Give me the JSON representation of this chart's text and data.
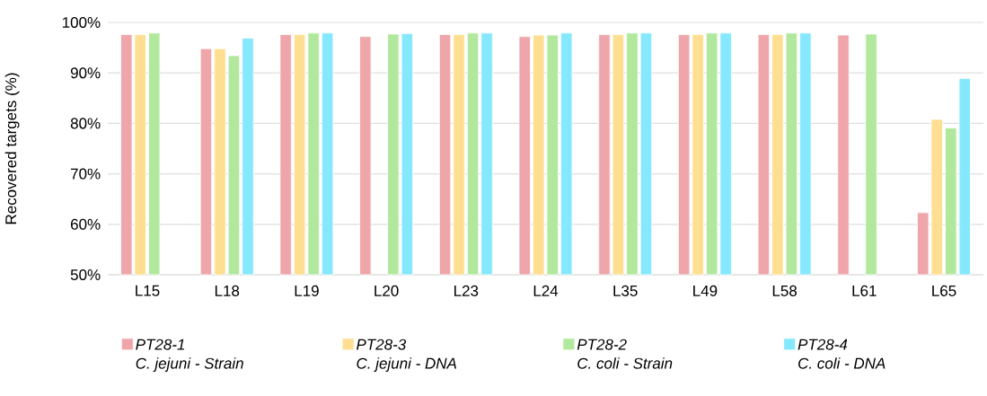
{
  "chart_data": {
    "type": "bar",
    "ylabel": "Recovered targets (%)",
    "categories": [
      "L15",
      "L18",
      "L19",
      "L20",
      "L23",
      "L24",
      "L35",
      "L49",
      "L58",
      "L61",
      "L65"
    ],
    "series": [
      {
        "name": "PT28-1 C. jejuni - Strain",
        "color": "#eea6aa",
        "values": [
          97.6,
          94.8,
          97.6,
          97.2,
          97.6,
          97.2,
          97.6,
          97.6,
          97.6,
          97.5,
          62.3
        ]
      },
      {
        "name": "PT28-3 C. jejuni - DNA",
        "color": "#fede91",
        "values": [
          97.6,
          94.8,
          97.6,
          null,
          97.6,
          97.5,
          97.6,
          97.6,
          97.6,
          null,
          80.8
        ]
      },
      {
        "name": "PT28-2 C. coli - Strain",
        "color": "#b1e89e",
        "values": [
          97.9,
          93.4,
          97.9,
          97.7,
          97.9,
          97.5,
          97.9,
          97.9,
          97.9,
          97.7,
          79.1
        ]
      },
      {
        "name": "PT28-4 C. coli - DNA",
        "color": "#86e8fc",
        "values": [
          null,
          96.9,
          97.9,
          97.8,
          97.9,
          97.9,
          97.9,
          97.9,
          97.9,
          null,
          88.9
        ]
      }
    ],
    "ylim": [
      50,
      100
    ],
    "yticks": [
      {
        "value": 50,
        "label": "50%"
      },
      {
        "value": 60,
        "label": "60%"
      },
      {
        "value": 70,
        "label": "70%"
      },
      {
        "value": 80,
        "label": "80%"
      },
      {
        "value": 90,
        "label": "90%"
      },
      {
        "value": 100,
        "label": "100%"
      }
    ],
    "grid": "y",
    "legend": "bottom"
  }
}
